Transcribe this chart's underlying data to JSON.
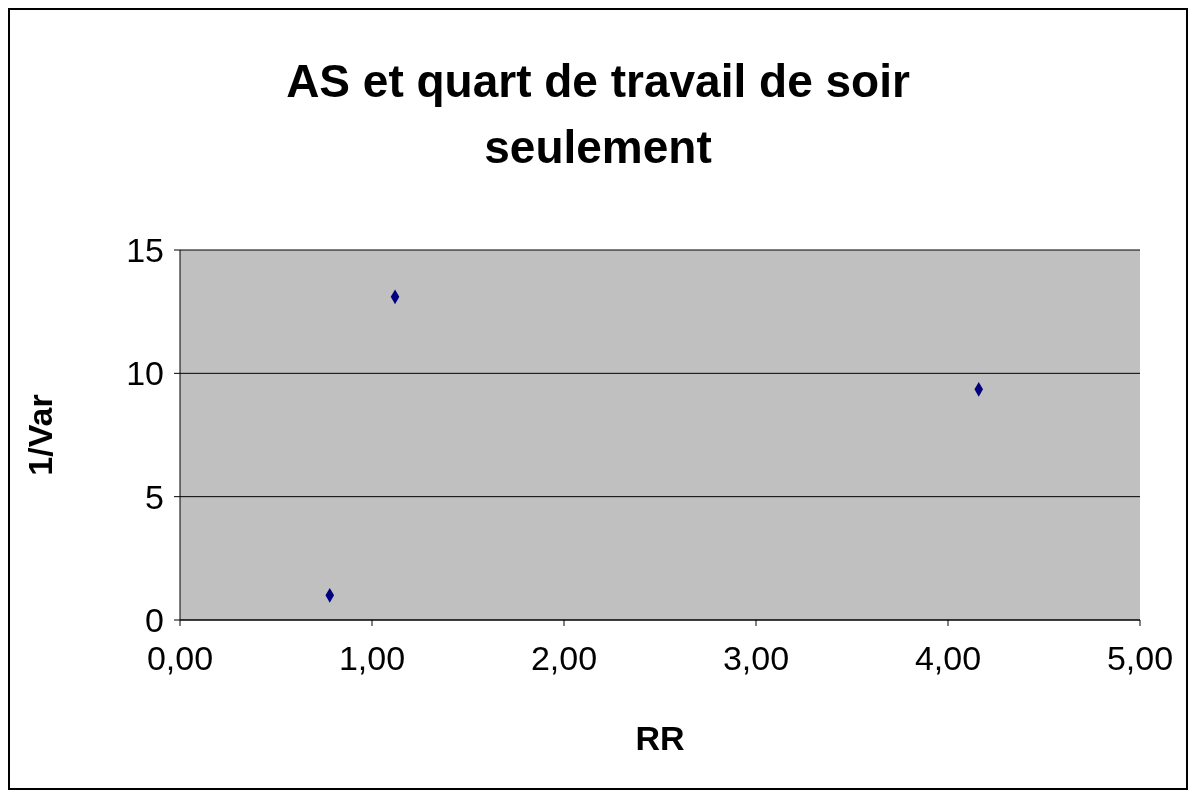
{
  "chart_data": {
    "type": "scatter",
    "title": "AS et quart de travail de soir seulement",
    "xlabel": "RR",
    "ylabel": "1/Var",
    "x": [
      0.78,
      1.12,
      4.16
    ],
    "values": [
      1.0,
      13.1,
      9.35
    ],
    "color": "#000080",
    "marker": "diamond",
    "grid": "y",
    "xlim": [
      0,
      5
    ],
    "xticks": [
      {
        "value": 0,
        "label": "0,00"
      },
      {
        "value": 1,
        "label": "1,00"
      },
      {
        "value": 2,
        "label": "2,00"
      },
      {
        "value": 3,
        "label": "3,00"
      },
      {
        "value": 4,
        "label": "4,00"
      },
      {
        "value": 5,
        "label": "5,00"
      }
    ],
    "ylim": [
      0,
      15
    ],
    "yticks": [
      0,
      5,
      10,
      15
    ]
  }
}
